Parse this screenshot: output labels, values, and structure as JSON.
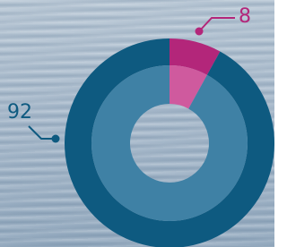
{
  "chart_data": {
    "type": "pie",
    "values": [
      8,
      92
    ],
    "colors": [
      "#b3267a",
      "#0e5a80"
    ],
    "inner_colors": [
      "#cf5a9e",
      "#3f81a5"
    ]
  }
}
